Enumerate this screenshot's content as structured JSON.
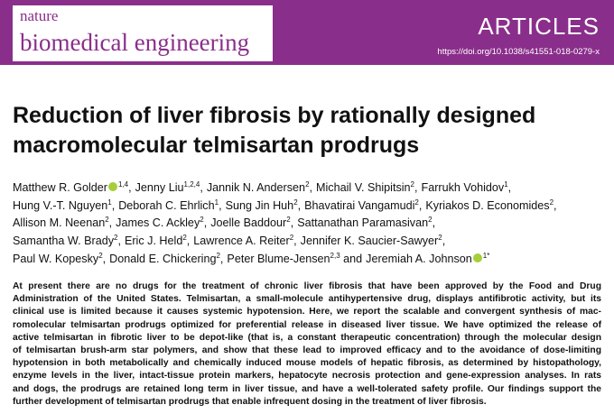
{
  "header": {
    "journal_top": "nature",
    "journal_bottom": "biomedical engineering",
    "section": "ARTICLES",
    "doi": "https://doi.org/10.1038/s41551-018-0279-x"
  },
  "title": {
    "lines": [
      "Reduction of liver fibrosis by rationally designed",
      "macromolecular telmisartan prodrugs"
    ]
  },
  "authors": {
    "lines": [
      [
        {
          "name": "Matthew R. Golder",
          "orcid": true,
          "affil": "1,4",
          "sep": ","
        },
        {
          "name": "Jenny Liu",
          "affil": "1,2,4",
          "sep": ","
        },
        {
          "name": "Jannik N. Andersen",
          "affil": "2",
          "sep": ","
        },
        {
          "name": "Michail V. Shipitsin",
          "affil": "2",
          "sep": ","
        },
        {
          "name": "Farrukh Vohidov",
          "affil": "1",
          "sep": ","
        }
      ],
      [
        {
          "name": "Hung V.-T. Nguyen",
          "affil": "1",
          "sep": ","
        },
        {
          "name": "Deborah C. Ehrlich",
          "affil": "1",
          "sep": ","
        },
        {
          "name": "Sung Jin Huh",
          "affil": "2",
          "sep": ","
        },
        {
          "name": "Bhavatirai Vangamudi",
          "affil": "2",
          "sep": ","
        },
        {
          "name": "Kyriakos D. Economides",
          "affil": "2",
          "sep": ","
        }
      ],
      [
        {
          "name": "Allison M. Neenan",
          "affil": "2",
          "sep": ","
        },
        {
          "name": "James C. Ackley",
          "affil": "2",
          "sep": ","
        },
        {
          "name": "Joelle Baddour",
          "affil": "2",
          "sep": ","
        },
        {
          "name": "Sattanathan Paramasivan",
          "affil": "2",
          "sep": ","
        }
      ],
      [
        {
          "name": "Samantha W. Brady",
          "affil": "2",
          "sep": ","
        },
        {
          "name": "Eric J. Held",
          "affil": "2",
          "sep": ","
        },
        {
          "name": "Lawrence A. Reiter",
          "affil": "2",
          "sep": ","
        },
        {
          "name": "Jennifer K. Saucier-Sawyer",
          "affil": "2",
          "sep": ","
        }
      ],
      [
        {
          "name": "Paul W. Kopesky",
          "affil": "2",
          "sep": ","
        },
        {
          "name": "Donald E. Chickering",
          "affil": "2",
          "sep": ","
        },
        {
          "name": "Peter Blume-Jensen",
          "affil": "2,3",
          "sep": " and"
        },
        {
          "name": "Jeremiah A. Johnson",
          "orcid": true,
          "affil": "1*"
        }
      ]
    ]
  },
  "abstract": {
    "lines": [
      "At present there are no drugs for the treatment of chronic liver fibrosis that have been approved by the Food and Drug",
      "Administration of the United States. Telmisartan, a small-molecule antihypertensive drug, displays antifibrotic activity, but its",
      "clinical use is limited because it causes systemic hypotension. Here, we report the scalable and convergent synthesis of mac-",
      "romolecular telmisartan prodrugs optimized for preferential release in diseased liver tissue. We have optimized the release of",
      "active telmisartan in fibrotic liver to be depot-like (that is, a constant therapeutic concentration) through the molecular design",
      "of telmisartan brush-arm star polymers, and show that these lead to improved efficacy and to the avoidance of dose-limiting",
      "hypotension in both metabolically and chemically induced mouse models of hepatic fibrosis, as determined by histopathology,",
      "enzyme levels in the liver, intact-tissue protein markers, hepatocyte necrosis protection and gene-expression analyses. In rats",
      "and dogs, the prodrugs are retained long term in liver tissue, and have a well-tolerated safety profile. Our findings support the",
      "further development of telmisartan prodrugs that enable infrequent dosing in the treatment of liver fibrosis."
    ]
  }
}
